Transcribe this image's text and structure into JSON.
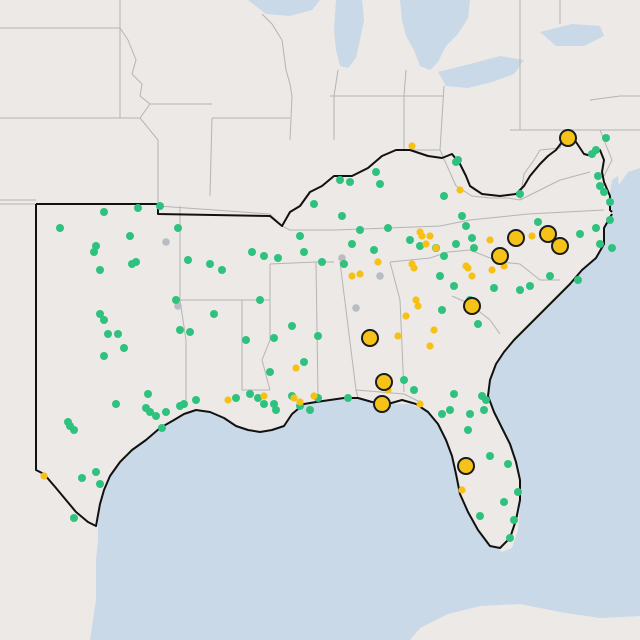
{
  "map": {
    "colors": {
      "land": "#ece9e6",
      "water": "#c9d9e8",
      "state_border": "#b5b5b5",
      "region_outline": "#111111",
      "marker_green": "#2ec27e",
      "marker_yellow": "#f6c015",
      "marker_gray": "#b9bcc0",
      "marker_large_fill": "#f5c21a",
      "marker_large_stroke": "#1b1b1b"
    },
    "legend_semantics": {
      "green": "small-green-marker",
      "yellow": "small-yellow-marker",
      "gray": "small-gray-marker",
      "large": "large-yellow-marker"
    }
  }
}
